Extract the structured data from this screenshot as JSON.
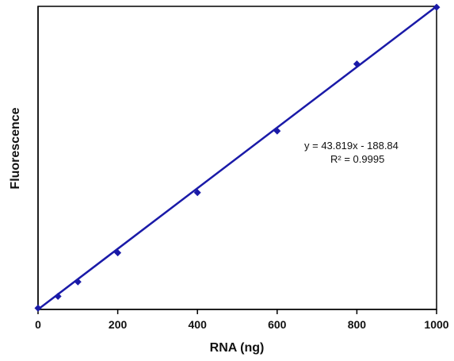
{
  "chart_data": {
    "type": "scatter",
    "xlabel": "RNA (ng)",
    "ylabel": "Fluorescence",
    "xlim": [
      0,
      1000
    ],
    "ylim": [
      -188.84,
      43629
    ],
    "xticks": [
      "0",
      "200",
      "400",
      "600",
      "800",
      "1000"
    ],
    "series": [
      {
        "x": [
          0,
          50,
          100,
          200,
          400,
          600,
          800,
          1000
        ],
        "y": [
          0,
          1700,
          3800,
          8000,
          16700,
          25600,
          35300,
          43500
        ]
      }
    ],
    "trendline": {
      "slope": 43.819,
      "intercept": -188.84,
      "equation": "y = 43.819x - 188.84",
      "r_squared": "R² = 0.9995"
    },
    "grid": false,
    "colors": {
      "series": "#1a1aa8",
      "axis": "#000000"
    }
  }
}
